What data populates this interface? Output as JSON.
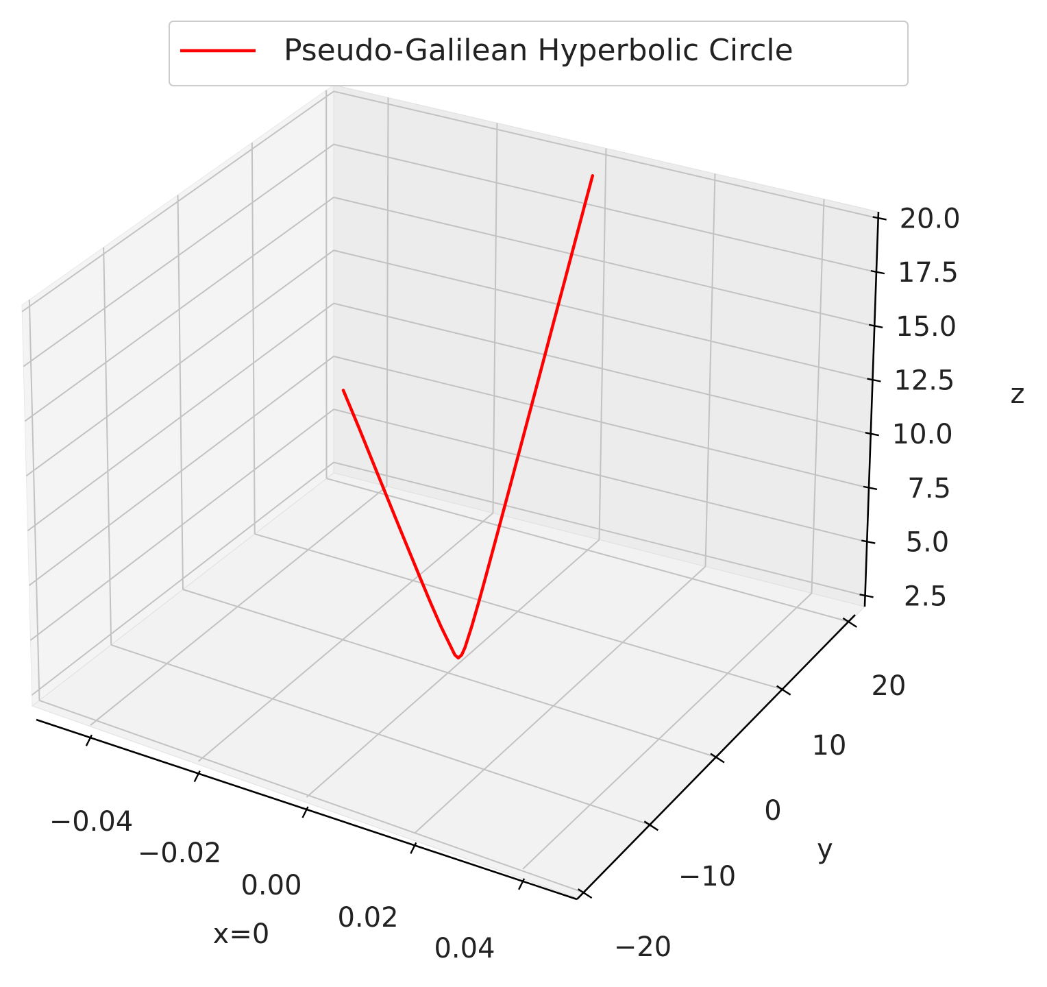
{
  "chart_data": {
    "type": "line",
    "dimensions": "3d",
    "title": "",
    "legend": {
      "placement": "top-center",
      "entries": [
        {
          "label": "Pseudo-Galilean Hyperbolic Circle",
          "color": "#ff0000"
        }
      ]
    },
    "xlabel": "x=0",
    "ylabel": "y",
    "zlabel": "z",
    "xlim": [
      -0.05,
      0.05
    ],
    "ylim": [
      -21,
      21
    ],
    "zlim": [
      2.0,
      20.3
    ],
    "xticks": [
      -0.04,
      -0.02,
      0.0,
      0.02,
      0.04
    ],
    "xtick_labels": [
      "−0.04",
      "−0.02",
      "0.00",
      "0.02",
      "0.04"
    ],
    "yticks": [
      -20,
      -10,
      0,
      10,
      20
    ],
    "ytick_labels": [
      "−20",
      "−10",
      "0",
      "10",
      "20"
    ],
    "zticks": [
      2.5,
      5.0,
      7.5,
      10.0,
      12.5,
      15.0,
      17.5,
      20.0
    ],
    "ztick_labels": [
      "2.5",
      "5.0",
      "7.5",
      "10.0",
      "12.5",
      "15.0",
      "17.5",
      "20.0"
    ],
    "grid": true,
    "series": [
      {
        "name": "Pseudo-Galilean Hyperbolic Circle",
        "color": "#ff0000",
        "x": [
          0,
          0,
          0,
          0,
          0,
          0,
          0,
          0,
          0,
          0,
          0,
          0,
          0,
          0,
          0,
          0,
          0,
          0,
          0,
          0,
          0,
          0,
          0,
          0
        ],
        "y": [
          -11.5,
          -10,
          -8,
          -6,
          -4,
          -3,
          -2,
          -1,
          -0.5,
          0,
          0.5,
          1,
          2,
          3,
          4,
          6,
          8,
          10,
          12,
          14,
          16,
          18,
          19,
          20
        ],
        "z": [
          11.5,
          10.05,
          8.06,
          6.08,
          4.12,
          3.16,
          2.24,
          1.41,
          1.12,
          1.0,
          1.12,
          1.41,
          2.24,
          3.16,
          4.12,
          6.08,
          8.06,
          10.05,
          12.04,
          14.04,
          16.03,
          18.03,
          19.03,
          20.02
        ]
      }
    ]
  }
}
